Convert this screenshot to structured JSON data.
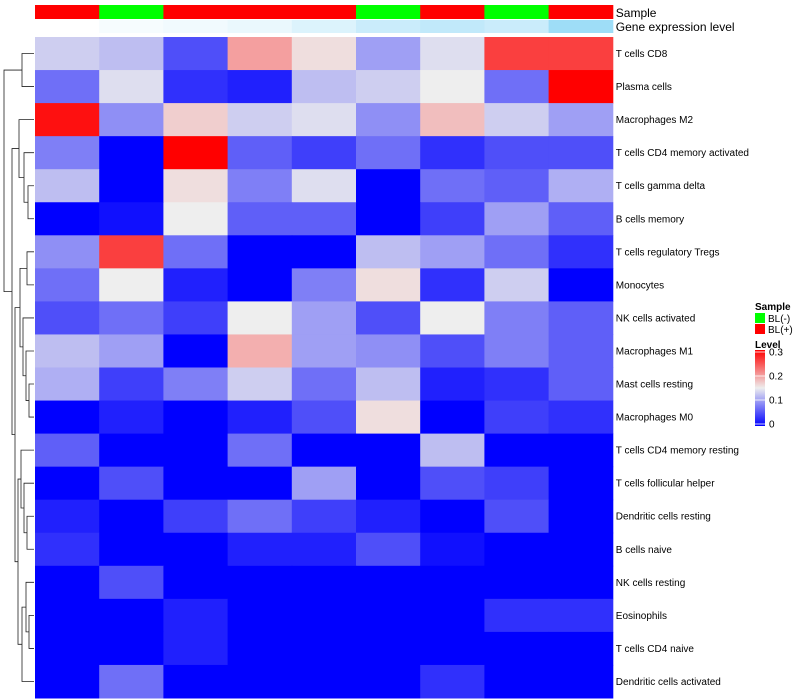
{
  "chart_data": {
    "type": "heatmap",
    "annotations": [
      {
        "label": "Sample",
        "values": [
          "BL(+)",
          "BL(-)",
          "BL(+)",
          "BL(+)",
          "BL(+)",
          "BL(-)",
          "BL(+)",
          "BL(-)",
          "BL(+)"
        ]
      },
      {
        "label": "Gene expression level",
        "values": [
          0.0,
          0.05,
          0.08,
          0.12,
          0.2,
          0.3,
          0.35,
          0.3,
          0.55
        ]
      }
    ],
    "rows": [
      "T cells CD8",
      "Plasma cells",
      "Macrophages M2",
      "T cells CD4 memory activated",
      "T cells gamma delta",
      "B cells memory",
      "T cells regulatory  Tregs",
      "Monocytes",
      "NK cells activated",
      "Macrophages M1",
      "Mast cells resting",
      "Macrophages M0",
      "T cells CD4 memory resting",
      "T cells follicular helper",
      "Dendritic cells resting",
      "B cells naive",
      "NK cells resting",
      "Eosinophils",
      "T cells CD4 naive",
      "Dendritic cells activated"
    ],
    "values": [
      [
        0.13,
        0.12,
        0.05,
        0.2,
        0.16,
        0.1,
        0.14,
        0.26,
        0.26
      ],
      [
        0.07,
        0.14,
        0.03,
        0.02,
        0.12,
        0.13,
        0.15,
        0.07,
        0.3
      ],
      [
        0.29,
        0.09,
        0.17,
        0.13,
        0.14,
        0.09,
        0.18,
        0.13,
        0.1
      ],
      [
        0.08,
        0.0,
        0.3,
        0.06,
        0.04,
        0.07,
        0.03,
        0.05,
        0.05
      ],
      [
        0.12,
        0.0,
        0.16,
        0.08,
        0.14,
        0.0,
        0.07,
        0.06,
        0.11
      ],
      [
        0.0,
        0.01,
        0.15,
        0.06,
        0.06,
        0.0,
        0.04,
        0.1,
        0.06
      ],
      [
        0.09,
        0.26,
        0.07,
        0.0,
        0.0,
        0.12,
        0.1,
        0.07,
        0.03
      ],
      [
        0.07,
        0.15,
        0.02,
        0.0,
        0.08,
        0.16,
        0.03,
        0.13,
        0.0
      ],
      [
        0.05,
        0.07,
        0.04,
        0.15,
        0.1,
        0.05,
        0.15,
        0.08,
        0.06
      ],
      [
        0.12,
        0.1,
        0.0,
        0.19,
        0.1,
        0.09,
        0.05,
        0.08,
        0.06
      ],
      [
        0.11,
        0.04,
        0.08,
        0.13,
        0.07,
        0.12,
        0.02,
        0.03,
        0.06
      ],
      [
        0.0,
        0.02,
        0.0,
        0.02,
        0.05,
        0.16,
        0.0,
        0.04,
        0.03
      ],
      [
        0.06,
        0.0,
        0.0,
        0.07,
        0.0,
        0.0,
        0.12,
        0.0,
        0.0
      ],
      [
        0.0,
        0.05,
        0.0,
        0.0,
        0.1,
        0.0,
        0.05,
        0.04,
        0.0
      ],
      [
        0.02,
        0.0,
        0.04,
        0.07,
        0.04,
        0.02,
        0.0,
        0.05,
        0.0
      ],
      [
        0.03,
        0.0,
        0.0,
        0.02,
        0.02,
        0.05,
        0.01,
        0.0,
        0.0
      ],
      [
        0.0,
        0.05,
        0.0,
        0.0,
        0.0,
        0.0,
        0.0,
        0.0,
        0.0
      ],
      [
        0.0,
        0.0,
        0.02,
        0.0,
        0.0,
        0.0,
        0.0,
        0.03,
        0.03
      ],
      [
        0.0,
        0.0,
        0.02,
        0.0,
        0.0,
        0.0,
        0.0,
        0.0,
        0.0
      ],
      [
        0.0,
        0.07,
        0.0,
        0.0,
        0.0,
        0.0,
        0.03,
        0.0,
        0.0
      ]
    ],
    "scale": {
      "min": 0,
      "max": 0.3,
      "ticks": [
        "0",
        "0.1",
        "0.2",
        "0.3"
      ]
    },
    "colors": {
      "low": "#0000ff",
      "mid": "#eeeeee",
      "mid_value": 0.15,
      "high": "#ff0000"
    },
    "sample_colors": {
      "BL(-)": "#00ff00",
      "BL(+)": "#ff0000"
    },
    "gene_level_colors": {
      "low": "#ffffff",
      "high": "#4fc1f0"
    },
    "legend": {
      "placement": "right",
      "sample_title": "Sample",
      "sample_items": [
        "BL(-)",
        "BL(+)"
      ],
      "level_title": "Level"
    }
  }
}
